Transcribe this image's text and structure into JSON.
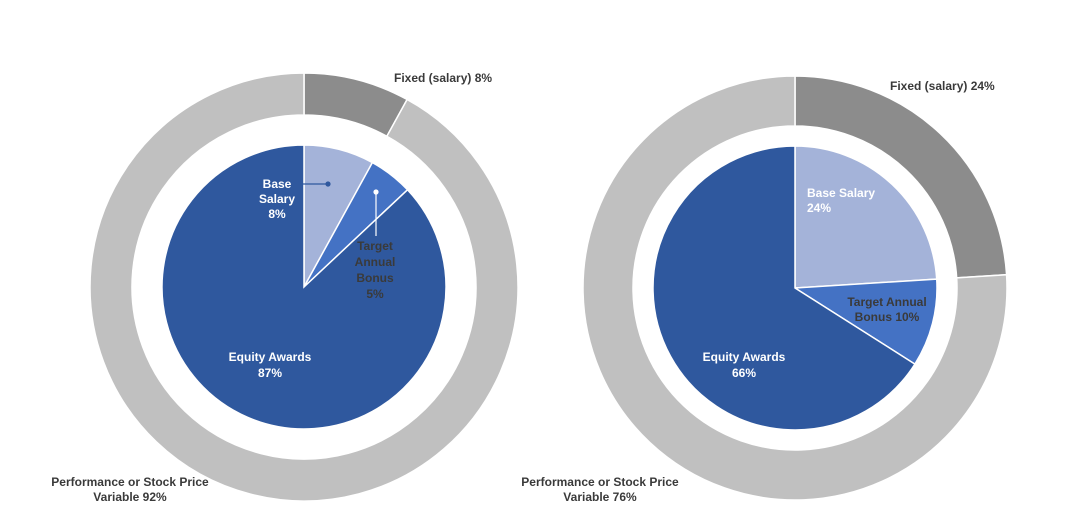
{
  "colors": {
    "outer_fixed": "#8c8c8c",
    "outer_variable": "#c0c0c0",
    "base_salary": "#a4b3d9",
    "target_bonus": "#4472c4",
    "equity_awards": "#2f589e",
    "separator": "#ffffff",
    "dark_text": "#3a3a3a",
    "light_text": "#ffffff"
  },
  "chart_data": [
    {
      "type": "pie",
      "rings": [
        {
          "name": "outer",
          "slices": [
            {
              "label_lines": [
                "Fixed (salary) 8%"
              ],
              "value": 8,
              "color_key": "outer_fixed"
            },
            {
              "label_lines": [
                "Performance or Stock Price",
                "Variable 92%"
              ],
              "value": 92,
              "color_key": "outer_variable"
            }
          ]
        },
        {
          "name": "inner",
          "slices": [
            {
              "label_lines": [
                "Base",
                "Salary",
                "8%"
              ],
              "value": 8,
              "color_key": "base_salary"
            },
            {
              "label_lines": [
                "Target",
                "Annual",
                "Bonus",
                "5%"
              ],
              "value": 5,
              "color_key": "target_bonus"
            },
            {
              "label_lines": [
                "Equity Awards",
                "87%"
              ],
              "value": 87,
              "color_key": "equity_awards"
            }
          ]
        }
      ]
    },
    {
      "type": "pie",
      "rings": [
        {
          "name": "outer",
          "slices": [
            {
              "label_lines": [
                "Fixed (salary) 24%"
              ],
              "value": 24,
              "color_key": "outer_fixed"
            },
            {
              "label_lines": [
                "Performance or Stock Price",
                "Variable 76%"
              ],
              "value": 76,
              "color_key": "outer_variable"
            }
          ]
        },
        {
          "name": "inner",
          "slices": [
            {
              "label_lines": [
                "Base Salary",
                "24%"
              ],
              "value": 24,
              "color_key": "base_salary"
            },
            {
              "label_lines": [
                "Target Annual",
                "Bonus 10%"
              ],
              "value": 10,
              "color_key": "target_bonus"
            },
            {
              "label_lines": [
                "Equity Awards",
                "66%"
              ],
              "value": 66,
              "color_key": "equity_awards"
            }
          ]
        }
      ]
    }
  ]
}
